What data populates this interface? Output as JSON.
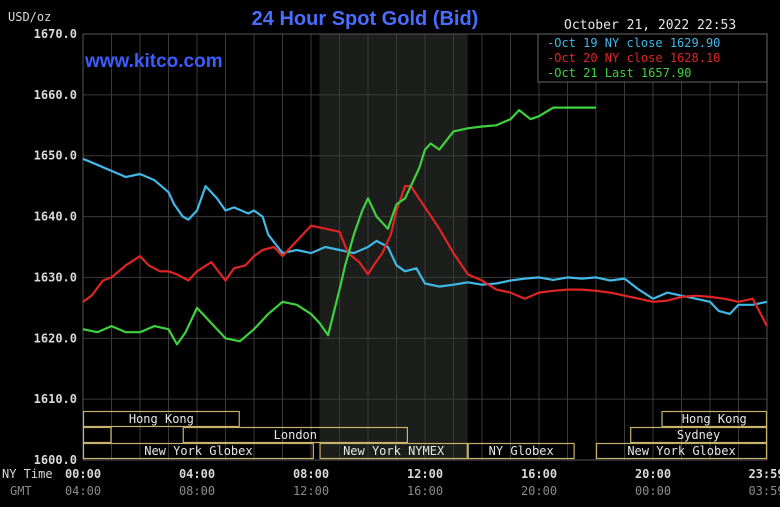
{
  "header": {
    "title": "24 Hour Spot Gold (Bid)",
    "unit": "USD/oz",
    "timestamp": "October 21, 2022 22:53",
    "watermark": "www.kitco.com"
  },
  "colors": {
    "background": "#000000",
    "plot_background": "#000000",
    "shade": "#1c1e1c",
    "grid": "#3a3a3a",
    "title": "#4a6cff",
    "watermark": "#3b5cff",
    "axis_text": "#d9d9d9",
    "gmt_text": "#8a8a8a",
    "market_box": "#c8b26a"
  },
  "chart_data": {
    "type": "line",
    "title": "24 Hour Spot Gold (Bid)",
    "ylabel": "USD/oz",
    "ylim": [
      1600,
      1670
    ],
    "yticks": [
      "1670.0",
      "1660.0",
      "1650.0",
      "1640.0",
      "1630.0",
      "1620.0",
      "1610.0",
      "1600.0"
    ],
    "xlim": [
      0,
      24
    ],
    "xtick_pos": [
      0,
      4,
      8,
      12,
      16,
      20,
      23.983
    ],
    "xticks_ny": [
      "00:00",
      "04:00",
      "08:00",
      "12:00",
      "16:00",
      "20:00",
      "23:59"
    ],
    "xticks_gmt": [
      "04:00",
      "08:00",
      "12:00",
      "16:00",
      "20:00",
      "00:00",
      "03:59"
    ],
    "ny_time_label": "NY Time",
    "gmt_label": "GMT",
    "grid": true,
    "shaded_hours": [
      8.3,
      13.5
    ],
    "legend": [
      {
        "label": "Oct 19 NY close 1629.90",
        "color": "#41b8e6"
      },
      {
        "label": "Oct 20 NY close 1628.10",
        "color": "#e02424"
      },
      {
        "label": "Oct 21 Last 1657.90",
        "color": "#3ed23e"
      }
    ],
    "series": [
      {
        "name": "Oct 19",
        "color": "#41b8e6",
        "x": [
          0,
          0.5,
          1,
          1.5,
          2,
          2.5,
          3,
          3.2,
          3.5,
          3.7,
          4,
          4.3,
          4.7,
          5,
          5.3,
          5.8,
          6,
          6.3,
          6.5,
          7,
          7.5,
          8,
          8.5,
          9,
          9.5,
          10,
          10.3,
          10.7,
          11,
          11.3,
          11.7,
          12,
          12.5,
          13,
          13.5,
          14,
          14.5,
          15,
          15.5,
          16,
          16.5,
          17,
          17.5,
          18,
          18.5,
          19,
          19.5,
          20,
          20.5,
          21,
          21.5,
          22,
          22.3,
          22.7,
          23,
          23.5,
          24
        ],
        "y": [
          1649.5,
          1648.5,
          1647.5,
          1646.5,
          1647,
          1646,
          1644,
          1642,
          1640,
          1639.5,
          1641,
          1645,
          1643,
          1641,
          1641.5,
          1640.5,
          1641,
          1640,
          1637,
          1634,
          1634.5,
          1634,
          1635,
          1634.5,
          1634,
          1635,
          1636,
          1635,
          1632,
          1631,
          1631.5,
          1629,
          1628.5,
          1628.8,
          1629.2,
          1628.8,
          1629,
          1629.5,
          1629.8,
          1630,
          1629.6,
          1630,
          1629.8,
          1630,
          1629.5,
          1629.8,
          1628,
          1626.5,
          1627.5,
          1627,
          1626.5,
          1626,
          1624.5,
          1624,
          1625.5,
          1625.5,
          1626
        ]
      },
      {
        "name": "Oct 20",
        "color": "#e02424",
        "x": [
          0,
          0.3,
          0.7,
          1,
          1.5,
          2,
          2.3,
          2.7,
          3,
          3.3,
          3.7,
          4,
          4.5,
          5,
          5.3,
          5.7,
          6,
          6.3,
          6.7,
          7,
          7.5,
          8,
          8.5,
          9,
          9.3,
          9.7,
          10,
          10.2,
          10.5,
          10.8,
          11,
          11.3,
          11.5,
          12,
          12.5,
          13,
          13.5,
          14,
          14.5,
          15,
          15.5,
          16,
          16.5,
          17,
          17.5,
          18,
          18.5,
          19,
          19.5,
          20,
          20.5,
          21,
          21.5,
          22,
          22.5,
          23,
          23.5,
          24
        ],
        "y": [
          1626,
          1627,
          1629.5,
          1630,
          1632,
          1633.5,
          1632,
          1631,
          1631,
          1630.5,
          1629.5,
          1631,
          1632.5,
          1629.5,
          1631.5,
          1632,
          1633.5,
          1634.5,
          1635,
          1633.5,
          1636,
          1638.5,
          1638,
          1637.5,
          1634,
          1632.5,
          1630.5,
          1632,
          1634,
          1637,
          1641,
          1645,
          1645,
          1641.5,
          1638,
          1634,
          1630.5,
          1629.5,
          1628,
          1627.5,
          1626.5,
          1627.5,
          1627.8,
          1628,
          1628,
          1627.8,
          1627.5,
          1627,
          1626.5,
          1626,
          1626.2,
          1626.8,
          1627,
          1626.8,
          1626.5,
          1626,
          1626.5,
          1622
        ]
      },
      {
        "name": "Oct 21",
        "color": "#3ed23e",
        "x": [
          0,
          0.5,
          1,
          1.5,
          2,
          2.5,
          3,
          3.3,
          3.6,
          4,
          4.5,
          5,
          5.5,
          6,
          6.5,
          7,
          7.5,
          8,
          8.3,
          8.6,
          9,
          9.2,
          9.5,
          9.8,
          10,
          10.3,
          10.7,
          11,
          11.3,
          11.6,
          11.8,
          12,
          12.2,
          12.5,
          13,
          13.5,
          14,
          14.5,
          15,
          15.3,
          15.7,
          16,
          16.5,
          17,
          17.5,
          18
        ],
        "y": [
          1621.5,
          1621,
          1622,
          1621,
          1621,
          1622,
          1621.5,
          1619,
          1621,
          1625,
          1622.5,
          1620,
          1619.5,
          1621.5,
          1624,
          1626,
          1625.5,
          1624,
          1622.5,
          1620.5,
          1628,
          1632,
          1637,
          1641,
          1643,
          1640,
          1638,
          1642,
          1643,
          1646,
          1648,
          1651,
          1652,
          1651,
          1654,
          1654.5,
          1654.8,
          1655,
          1656,
          1657.5,
          1656,
          1656.5,
          1657.9,
          1657.9,
          1657.9,
          1657.9
        ]
      }
    ],
    "market_rows": [
      [
        {
          "label": "Hong Kong",
          "start": 0,
          "end": 5.5
        },
        {
          "label": "Hong Kong",
          "start": 20.3,
          "end": 24
        }
      ],
      [
        {
          "label": "",
          "start": 0,
          "end": 1
        },
        {
          "label": "London",
          "start": 3.5,
          "end": 11.4
        },
        {
          "label": "Sydney",
          "start": 19.2,
          "end": 24
        }
      ],
      [
        {
          "label": "New York Globex",
          "start": 0,
          "end": 8.1
        },
        {
          "label": "New York NYMEX",
          "start": 8.3,
          "end": 13.5
        },
        {
          "label": "NY Globex",
          "start": 13.5,
          "end": 17.25
        },
        {
          "label": "New York Globex",
          "start": 18,
          "end": 24
        }
      ]
    ]
  }
}
